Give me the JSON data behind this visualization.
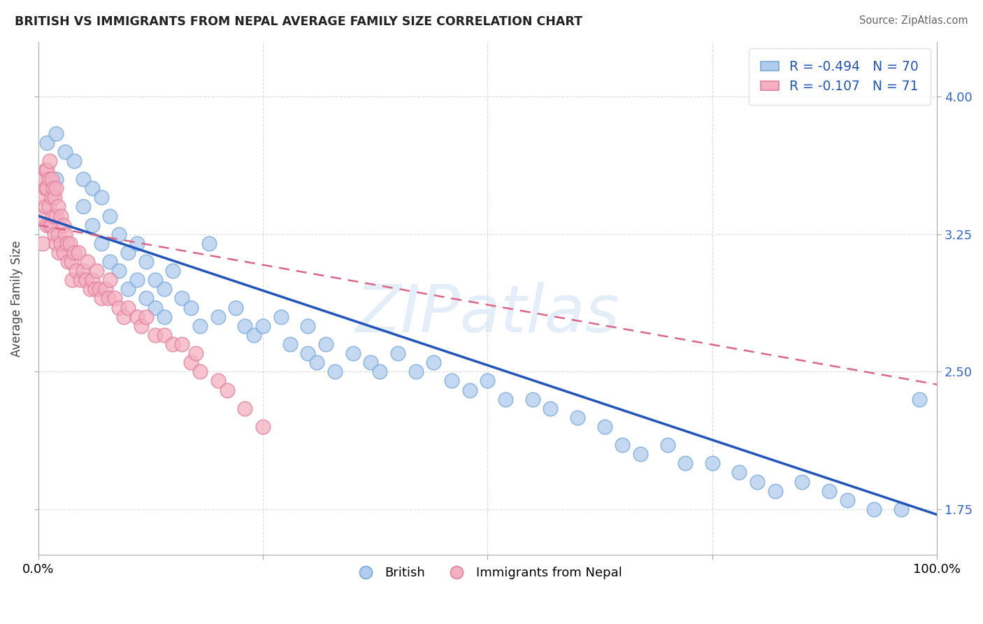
{
  "title": "BRITISH VS IMMIGRANTS FROM NEPAL AVERAGE FAMILY SIZE CORRELATION CHART",
  "source": "Source: ZipAtlas.com",
  "ylabel": "Average Family Size",
  "xlim": [
    0,
    1.0
  ],
  "ylim": [
    1.5,
    4.3
  ],
  "yticks": [
    1.75,
    2.5,
    3.25,
    4.0
  ],
  "xticks": [
    0.0,
    0.25,
    0.5,
    0.75,
    1.0
  ],
  "xticklabels": [
    "0.0%",
    "",
    "",
    "",
    "100.0%"
  ],
  "background_color": "#ffffff",
  "grid_color": "#cccccc",
  "british_color": "#b0ccee",
  "nepal_color": "#f4afc0",
  "british_edge_color": "#7aaad8",
  "nepal_edge_color": "#e080a0",
  "british_line_color": "#2255bb",
  "nepal_line_color": "#dd6688",
  "british_scatter_x": [
    0.01,
    0.02,
    0.02,
    0.03,
    0.04,
    0.05,
    0.05,
    0.06,
    0.06,
    0.07,
    0.07,
    0.08,
    0.08,
    0.09,
    0.09,
    0.1,
    0.1,
    0.11,
    0.11,
    0.12,
    0.12,
    0.13,
    0.13,
    0.14,
    0.14,
    0.15,
    0.16,
    0.17,
    0.18,
    0.19,
    0.2,
    0.22,
    0.23,
    0.24,
    0.25,
    0.27,
    0.28,
    0.3,
    0.3,
    0.31,
    0.32,
    0.33,
    0.35,
    0.37,
    0.38,
    0.4,
    0.42,
    0.44,
    0.46,
    0.48,
    0.5,
    0.52,
    0.55,
    0.57,
    0.6,
    0.63,
    0.65,
    0.67,
    0.7,
    0.72,
    0.75,
    0.78,
    0.8,
    0.82,
    0.85,
    0.88,
    0.9,
    0.93,
    0.96,
    0.98
  ],
  "british_scatter_y": [
    3.75,
    3.8,
    3.55,
    3.7,
    3.65,
    3.55,
    3.4,
    3.5,
    3.3,
    3.45,
    3.2,
    3.35,
    3.1,
    3.25,
    3.05,
    3.15,
    2.95,
    3.2,
    3.0,
    3.1,
    2.9,
    3.0,
    2.85,
    2.95,
    2.8,
    3.05,
    2.9,
    2.85,
    2.75,
    3.2,
    2.8,
    2.85,
    2.75,
    2.7,
    2.75,
    2.8,
    2.65,
    2.75,
    2.6,
    2.55,
    2.65,
    2.5,
    2.6,
    2.55,
    2.5,
    2.6,
    2.5,
    2.55,
    2.45,
    2.4,
    2.45,
    2.35,
    2.35,
    2.3,
    2.25,
    2.2,
    2.1,
    2.05,
    2.1,
    2.0,
    2.0,
    1.95,
    1.9,
    1.85,
    1.9,
    1.85,
    1.8,
    1.75,
    1.75,
    2.35
  ],
  "british_line_x0": 0.0,
  "british_line_y0": 3.35,
  "british_line_x1": 1.0,
  "british_line_y1": 1.72,
  "nepal_line_x0": 0.0,
  "nepal_line_y0": 3.3,
  "nepal_line_x1": 1.0,
  "nepal_line_y1": 2.43,
  "nepal_scatter_x": [
    0.005,
    0.005,
    0.005,
    0.005,
    0.008,
    0.008,
    0.008,
    0.01,
    0.01,
    0.01,
    0.012,
    0.012,
    0.013,
    0.013,
    0.015,
    0.015,
    0.015,
    0.017,
    0.017,
    0.018,
    0.018,
    0.02,
    0.02,
    0.02,
    0.022,
    0.022,
    0.023,
    0.025,
    0.025,
    0.028,
    0.028,
    0.03,
    0.032,
    0.033,
    0.035,
    0.037,
    0.038,
    0.04,
    0.042,
    0.045,
    0.047,
    0.05,
    0.053,
    0.055,
    0.058,
    0.06,
    0.063,
    0.065,
    0.068,
    0.07,
    0.075,
    0.078,
    0.08,
    0.085,
    0.09,
    0.095,
    0.1,
    0.11,
    0.115,
    0.12,
    0.13,
    0.14,
    0.15,
    0.16,
    0.17,
    0.175,
    0.18,
    0.2,
    0.21,
    0.23,
    0.25
  ],
  "nepal_scatter_y": [
    3.55,
    3.45,
    3.35,
    3.2,
    3.6,
    3.5,
    3.4,
    3.6,
    3.5,
    3.3,
    3.55,
    3.4,
    3.65,
    3.3,
    3.55,
    3.45,
    3.3,
    3.5,
    3.35,
    3.45,
    3.25,
    3.5,
    3.35,
    3.2,
    3.4,
    3.25,
    3.15,
    3.35,
    3.2,
    3.3,
    3.15,
    3.25,
    3.2,
    3.1,
    3.2,
    3.1,
    3.0,
    3.15,
    3.05,
    3.15,
    3.0,
    3.05,
    3.0,
    3.1,
    2.95,
    3.0,
    2.95,
    3.05,
    2.95,
    2.9,
    2.95,
    2.9,
    3.0,
    2.9,
    2.85,
    2.8,
    2.85,
    2.8,
    2.75,
    2.8,
    2.7,
    2.7,
    2.65,
    2.65,
    2.55,
    2.6,
    2.5,
    2.45,
    2.4,
    2.3,
    2.2
  ],
  "legend_R_british": "R = -0.494",
  "legend_N_british": "N = 70",
  "legend_R_nepal": "R = -0.107",
  "legend_N_nepal": "N = 71",
  "watermark_text": "ZIPatlas",
  "bottom_legend_british": "British",
  "bottom_legend_nepal": "Immigrants from Nepal"
}
